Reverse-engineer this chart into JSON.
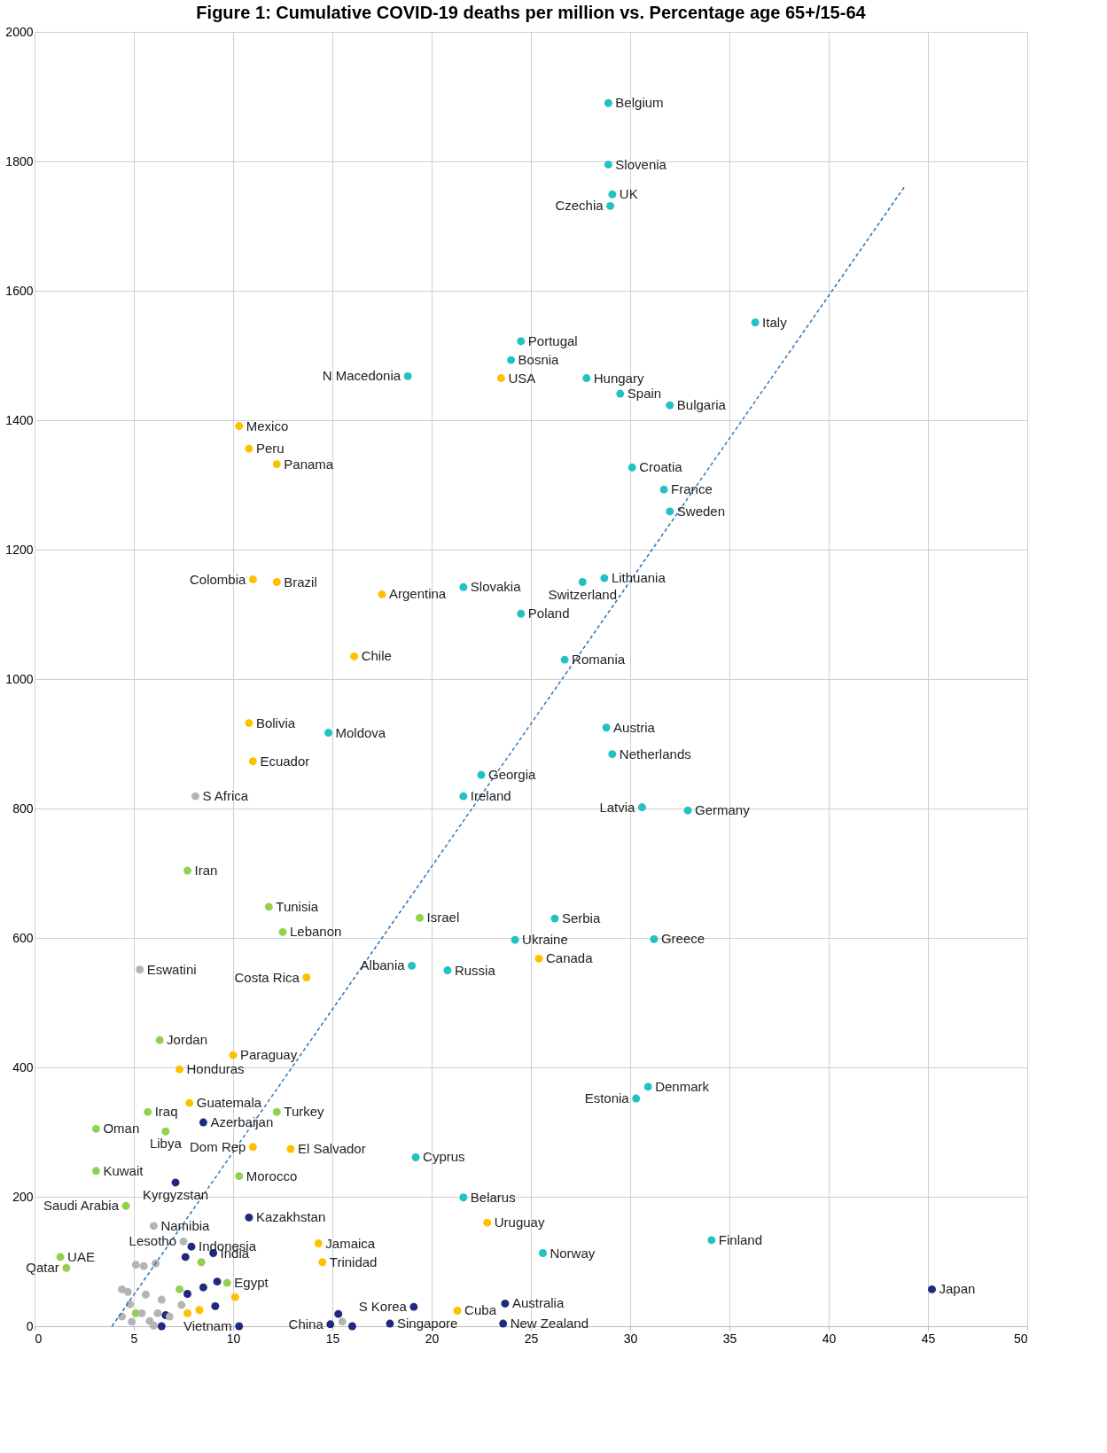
{
  "chart_data": {
    "type": "scatter",
    "title": "Figure 1: Cumulative COVID-19 deaths per million vs. Percentage age 65+/15-64",
    "xlim": [
      0,
      50
    ],
    "xticks": [
      0,
      5,
      10,
      15,
      20,
      25,
      30,
      35,
      40,
      45,
      50
    ],
    "ylim": [
      0,
      2000
    ],
    "yticks": [
      0,
      200,
      400,
      600,
      800,
      1000,
      1200,
      1400,
      1600,
      1800,
      2000
    ],
    "grid": true,
    "series": [
      {
        "marker": "circle",
        "color": "#22c1c3",
        "x": [
          28.9,
          28.9,
          29.1,
          29.0,
          36.3,
          24.5,
          24.0,
          18.8,
          27.8,
          29.5,
          32.0,
          30.1,
          31.7,
          32.0,
          21.6,
          28.7,
          27.6,
          24.5,
          26.7,
          14.8,
          28.8,
          29.1,
          22.5,
          21.6,
          30.6,
          32.9,
          26.2,
          24.2,
          31.2,
          19.0,
          20.8,
          30.9,
          30.3,
          19.2,
          21.6,
          25.6,
          34.1
        ],
        "values": [
          1890,
          1795,
          1749,
          1731,
          1551,
          1522,
          1493,
          1468,
          1465,
          1441,
          1423,
          1327,
          1293,
          1259,
          1142,
          1156,
          1150,
          1101,
          1030,
          917,
          925,
          884,
          852,
          819,
          802,
          797,
          630,
          597,
          598,
          557,
          550,
          370,
          352,
          261,
          199,
          113,
          133
        ]
      },
      {
        "marker": "circle",
        "color": "#ffc000",
        "x": [
          23.5,
          10.3,
          10.8,
          12.2,
          11.0,
          12.2,
          17.5,
          16.1,
          10.8,
          11.0,
          25.4,
          13.7,
          10.0,
          7.3,
          7.8,
          11.0,
          12.9,
          14.3,
          14.5,
          22.8,
          21.3,
          10.1,
          7.7,
          8.3
        ],
        "values": [
          1465,
          1391,
          1356,
          1332,
          1154,
          1150,
          1131,
          1035,
          932,
          873,
          568,
          539,
          419,
          397,
          345,
          277,
          274,
          128,
          99,
          160,
          24,
          45,
          20,
          25
        ]
      },
      {
        "marker": "circle",
        "color": "#92d050",
        "x": [
          7.7,
          11.8,
          19.4,
          12.5,
          6.3,
          5.7,
          12.2,
          3.1,
          6.6,
          3.1,
          10.3,
          4.6,
          1.3,
          1.6,
          9.7,
          8.4,
          7.3,
          5.1
        ],
        "values": [
          704,
          648,
          631,
          609,
          442,
          331,
          331,
          305,
          301,
          240,
          232,
          186,
          107,
          90,
          67,
          99,
          57,
          20
        ]
      },
      {
        "marker": "circle",
        "color": "#1f2a7c",
        "x": [
          8.5,
          7.1,
          10.8,
          7.9,
          9.0,
          45.2,
          19.1,
          23.7,
          14.9,
          10.3,
          17.9,
          23.6,
          7.6,
          9.2,
          7.7,
          8.5,
          9.1,
          6.6,
          6.4,
          15.3,
          16.0
        ],
        "values": [
          315,
          222,
          168,
          123,
          113,
          57,
          30,
          35,
          3,
          0,
          4,
          4,
          107,
          69,
          50,
          60,
          31,
          17,
          0,
          19,
          0
        ]
      },
      {
        "marker": "circle",
        "color": "#b4b4b4",
        "x": [
          8.1,
          5.3,
          6.0,
          7.5,
          5.1,
          5.5,
          6.1,
          4.4,
          4.7,
          5.6,
          6.4,
          4.8,
          7.4,
          4.4,
          4.9,
          5.4,
          5.8,
          6.2,
          6.0,
          6.8,
          15.5
        ],
        "values": [
          819,
          551,
          155,
          131,
          95,
          93,
          97,
          57,
          53,
          49,
          41,
          34,
          33,
          15,
          7,
          20,
          8,
          20,
          1,
          15,
          7
        ]
      },
      {
        "type": "line",
        "line_style": "dashed",
        "color": "#2e75b6",
        "x": [
          3.9,
          43.8
        ],
        "values": [
          0,
          1760
        ]
      }
    ],
    "annotations": [
      {
        "text": "Belgium",
        "x": 28.9,
        "y": 1890
      },
      {
        "text": "Slovenia",
        "x": 28.9,
        "y": 1795
      },
      {
        "text": "UK",
        "x": 29.1,
        "y": 1749
      },
      {
        "text": "Czechia",
        "x": 29.0,
        "y": 1731
      },
      {
        "text": "Italy",
        "x": 36.3,
        "y": 1551
      },
      {
        "text": "Portugal",
        "x": 24.5,
        "y": 1522
      },
      {
        "text": "Bosnia",
        "x": 24.0,
        "y": 1493
      },
      {
        "text": "USA",
        "x": 23.5,
        "y": 1465
      },
      {
        "text": "N Macedonia",
        "x": 18.8,
        "y": 1468
      },
      {
        "text": "Hungary",
        "x": 27.8,
        "y": 1465
      },
      {
        "text": "Spain",
        "x": 29.5,
        "y": 1441
      },
      {
        "text": "Bulgaria",
        "x": 32.0,
        "y": 1423
      },
      {
        "text": "Mexico",
        "x": 10.3,
        "y": 1391
      },
      {
        "text": "Peru",
        "x": 10.8,
        "y": 1356
      },
      {
        "text": "Panama",
        "x": 12.2,
        "y": 1332
      },
      {
        "text": "Croatia",
        "x": 30.1,
        "y": 1327
      },
      {
        "text": "France",
        "x": 31.7,
        "y": 1293
      },
      {
        "text": "Sweden",
        "x": 32.0,
        "y": 1259
      },
      {
        "text": "Lithuania",
        "x": 28.7,
        "y": 1156
      },
      {
        "text": "Colombia",
        "x": 11.0,
        "y": 1154
      },
      {
        "text": "Brazil",
        "x": 12.2,
        "y": 1150
      },
      {
        "text": "Slovakia",
        "x": 21.6,
        "y": 1142
      },
      {
        "text": "Switzerland",
        "x": 27.6,
        "y": 1150
      },
      {
        "text": "Argentina",
        "x": 17.5,
        "y": 1131
      },
      {
        "text": "Poland",
        "x": 24.5,
        "y": 1101
      },
      {
        "text": "Chile",
        "x": 16.1,
        "y": 1035
      },
      {
        "text": "Romania",
        "x": 26.7,
        "y": 1030
      },
      {
        "text": "Bolivia",
        "x": 10.8,
        "y": 932
      },
      {
        "text": "Moldova",
        "x": 14.8,
        "y": 917
      },
      {
        "text": "Austria",
        "x": 28.8,
        "y": 925
      },
      {
        "text": "Netherlands",
        "x": 29.1,
        "y": 884
      },
      {
        "text": "Ecuador",
        "x": 11.0,
        "y": 873
      },
      {
        "text": "Georgia",
        "x": 22.5,
        "y": 852
      },
      {
        "text": "S Africa",
        "x": 8.1,
        "y": 819
      },
      {
        "text": "Ireland",
        "x": 21.6,
        "y": 819
      },
      {
        "text": "Latvia",
        "x": 30.6,
        "y": 802
      },
      {
        "text": "Germany",
        "x": 32.9,
        "y": 797
      },
      {
        "text": "Iran",
        "x": 7.7,
        "y": 704
      },
      {
        "text": "Tunisia",
        "x": 11.8,
        "y": 648
      },
      {
        "text": "Israel",
        "x": 19.4,
        "y": 631
      },
      {
        "text": "Serbia",
        "x": 26.2,
        "y": 630
      },
      {
        "text": "Lebanon",
        "x": 12.5,
        "y": 609
      },
      {
        "text": "Ukraine",
        "x": 24.2,
        "y": 597
      },
      {
        "text": "Greece",
        "x": 31.2,
        "y": 598
      },
      {
        "text": "Albania",
        "x": 19.0,
        "y": 557
      },
      {
        "text": "Canada",
        "x": 25.4,
        "y": 568
      },
      {
        "text": "Russia",
        "x": 20.8,
        "y": 550
      },
      {
        "text": "Eswatini",
        "x": 5.3,
        "y": 551
      },
      {
        "text": "Costa Rica",
        "x": 13.7,
        "y": 539
      },
      {
        "text": "Jordan",
        "x": 6.3,
        "y": 442
      },
      {
        "text": "Paraguay",
        "x": 10.0,
        "y": 419
      },
      {
        "text": "Honduras",
        "x": 7.3,
        "y": 397
      },
      {
        "text": "Denmark",
        "x": 30.9,
        "y": 370
      },
      {
        "text": "Estonia",
        "x": 30.3,
        "y": 352
      },
      {
        "text": "Guatemala",
        "x": 7.8,
        "y": 345
      },
      {
        "text": "Iraq",
        "x": 5.7,
        "y": 331
      },
      {
        "text": "Turkey",
        "x": 12.2,
        "y": 331
      },
      {
        "text": "Azerbaijan",
        "x": 8.5,
        "y": 315
      },
      {
        "text": "Oman",
        "x": 3.1,
        "y": 305
      },
      {
        "text": "Libya",
        "x": 6.6,
        "y": 301
      },
      {
        "text": "El Salvador",
        "x": 12.9,
        "y": 274
      },
      {
        "text": "Dom Rep",
        "x": 11.0,
        "y": 277
      },
      {
        "text": "Cyprus",
        "x": 19.2,
        "y": 261
      },
      {
        "text": "Kuwait",
        "x": 3.1,
        "y": 240
      },
      {
        "text": "Morocco",
        "x": 10.3,
        "y": 232
      },
      {
        "text": "Kyrgyzstan",
        "x": 7.1,
        "y": 222
      },
      {
        "text": "Belarus",
        "x": 21.6,
        "y": 199
      },
      {
        "text": "Saudi Arabia",
        "x": 4.6,
        "y": 186
      },
      {
        "text": "Kazakhstan",
        "x": 10.8,
        "y": 168
      },
      {
        "text": "Uruguay",
        "x": 22.8,
        "y": 160
      },
      {
        "text": "Namibia",
        "x": 6.0,
        "y": 155
      },
      {
        "text": "Finland",
        "x": 34.1,
        "y": 133
      },
      {
        "text": "Lesotho",
        "x": 7.5,
        "y": 131
      },
      {
        "text": "Indonesia",
        "x": 7.9,
        "y": 123
      },
      {
        "text": "Jamaica",
        "x": 14.3,
        "y": 128
      },
      {
        "text": "India",
        "x": 9.0,
        "y": 113
      },
      {
        "text": "Norway",
        "x": 25.6,
        "y": 113
      },
      {
        "text": "UAE",
        "x": 1.3,
        "y": 107
      },
      {
        "text": "Trinidad",
        "x": 14.5,
        "y": 99
      },
      {
        "text": "Qatar",
        "x": 1.6,
        "y": 90
      },
      {
        "text": "Egypt",
        "x": 9.7,
        "y": 67
      },
      {
        "text": "Japan",
        "x": 45.2,
        "y": 57
      },
      {
        "text": "S Korea",
        "x": 19.1,
        "y": 30
      },
      {
        "text": "Cuba",
        "x": 21.3,
        "y": 24
      },
      {
        "text": "Australia",
        "x": 23.7,
        "y": 35
      },
      {
        "text": "New Zealand",
        "x": 23.6,
        "y": 4
      },
      {
        "text": "China",
        "x": 14.9,
        "y": 3
      },
      {
        "text": "Singapore",
        "x": 17.9,
        "y": 4
      },
      {
        "text": "Vietnam",
        "x": 10.3,
        "y": 0
      }
    ]
  }
}
